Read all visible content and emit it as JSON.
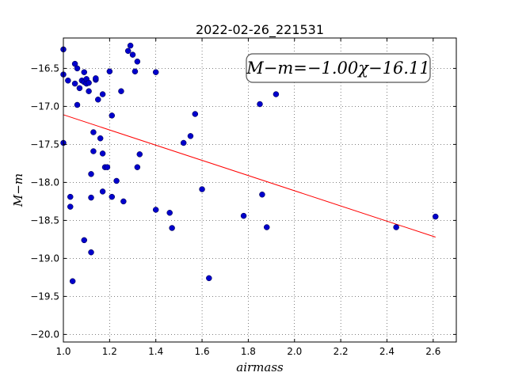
{
  "chart_data": {
    "type": "scatter",
    "title": "2022-02-26_221531",
    "xlabel": "airmass",
    "ylabel": "M−m",
    "xlim": [
      1.0,
      2.7
    ],
    "ylim": [
      -20.1,
      -16.1
    ],
    "x_ticks": [
      1.0,
      1.2,
      1.4,
      1.6,
      1.8,
      2.0,
      2.2,
      2.4,
      2.6
    ],
    "x_tick_labels": [
      "1.0",
      "1.2",
      "1.4",
      "1.6",
      "1.8",
      "2.0",
      "2.2",
      "2.4",
      "2.6"
    ],
    "y_ticks": [
      -16.5,
      -17.0,
      -17.5,
      -18.0,
      -18.5,
      -19.0,
      -19.5,
      -20.0
    ],
    "y_tick_labels": [
      "−16.5",
      "−17.0",
      "−17.5",
      "−18.0",
      "−18.5",
      "−19.0",
      "−19.5",
      "−20.0"
    ],
    "grid": true,
    "annotation": "M−m=−1.00χ−16.11",
    "fit_line": {
      "slope": -1.0,
      "intercept": -16.11,
      "x_range": [
        1.0,
        2.61
      ],
      "color": "#ff0000"
    },
    "point_color": "#0000cc",
    "points": [
      [
        1.0,
        -16.25
      ],
      [
        1.0,
        -16.58
      ],
      [
        1.0,
        -17.48
      ],
      [
        1.02,
        -16.66
      ],
      [
        1.03,
        -18.19
      ],
      [
        1.03,
        -18.32
      ],
      [
        1.04,
        -19.3
      ],
      [
        1.05,
        -16.44
      ],
      [
        1.05,
        -16.7
      ],
      [
        1.06,
        -16.5
      ],
      [
        1.06,
        -16.98
      ],
      [
        1.07,
        -16.76
      ],
      [
        1.08,
        -16.66
      ],
      [
        1.09,
        -16.55
      ],
      [
        1.09,
        -16.68
      ],
      [
        1.09,
        -18.76
      ],
      [
        1.1,
        -16.64
      ],
      [
        1.1,
        -16.7
      ],
      [
        1.11,
        -16.8
      ],
      [
        1.11,
        -16.69
      ],
      [
        1.12,
        -18.2
      ],
      [
        1.12,
        -17.89
      ],
      [
        1.12,
        -18.92
      ],
      [
        1.13,
        -17.59
      ],
      [
        1.13,
        -17.34
      ],
      [
        1.14,
        -16.65
      ],
      [
        1.14,
        -16.63
      ],
      [
        1.15,
        -16.91
      ],
      [
        1.16,
        -17.42
      ],
      [
        1.17,
        -16.84
      ],
      [
        1.17,
        -17.62
      ],
      [
        1.17,
        -18.12
      ],
      [
        1.18,
        -17.8
      ],
      [
        1.19,
        -17.8
      ],
      [
        1.2,
        -16.54
      ],
      [
        1.21,
        -17.12
      ],
      [
        1.21,
        -18.19
      ],
      [
        1.23,
        -17.98
      ],
      [
        1.25,
        -16.8
      ],
      [
        1.26,
        -18.25
      ],
      [
        1.28,
        -16.27
      ],
      [
        1.29,
        -16.2
      ],
      [
        1.3,
        -16.32
      ],
      [
        1.31,
        -16.54
      ],
      [
        1.32,
        -16.41
      ],
      [
        1.32,
        -17.8
      ],
      [
        1.33,
        -17.63
      ],
      [
        1.4,
        -16.55
      ],
      [
        1.4,
        -18.36
      ],
      [
        1.46,
        -18.4
      ],
      [
        1.47,
        -18.6
      ],
      [
        1.52,
        -17.48
      ],
      [
        1.55,
        -17.39
      ],
      [
        1.57,
        -17.1
      ],
      [
        1.6,
        -18.09
      ],
      [
        1.63,
        -19.26
      ],
      [
        1.78,
        -18.44
      ],
      [
        1.85,
        -16.97
      ],
      [
        1.86,
        -18.16
      ],
      [
        1.88,
        -18.59
      ],
      [
        1.92,
        -16.84
      ],
      [
        2.44,
        -18.59
      ],
      [
        2.61,
        -18.45
      ]
    ]
  }
}
